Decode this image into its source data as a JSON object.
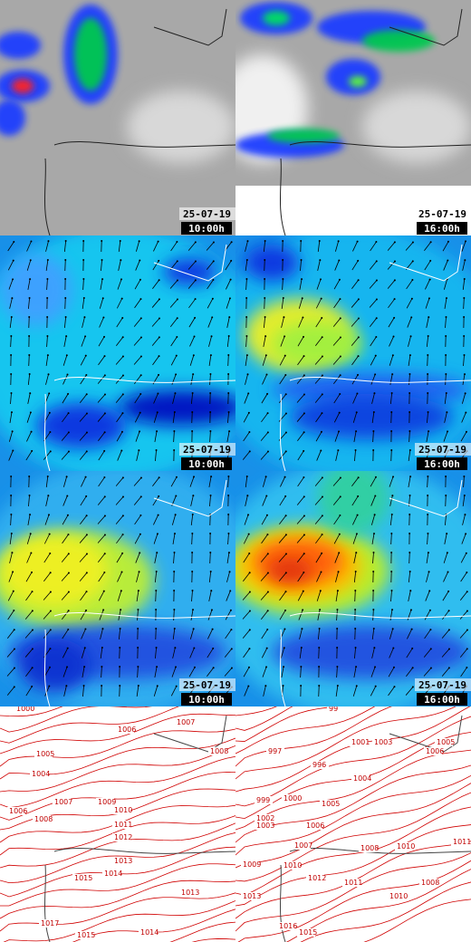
{
  "panels": [
    {
      "date": "25-07-19",
      "time": "10:00h"
    },
    {
      "date": "25-07-19",
      "time": "16:00h"
    },
    {
      "date": "25-07-19",
      "time": "10:00h"
    },
    {
      "date": "25-07-19",
      "time": "16:00h"
    },
    {
      "date": "25-07-19",
      "time": "10:00h"
    },
    {
      "date": "25-07-19",
      "time": "16:00h"
    },
    {
      "isobar_labels": [
        "1000",
        "1007",
        "1006",
        "1005",
        "1004",
        "1008",
        "1006",
        "1007",
        "1008",
        "1009",
        "1010",
        "1011",
        "1012",
        "1013",
        "1014",
        "1015",
        "1013",
        "1017",
        "1014",
        "1015"
      ]
    },
    {
      "isobar_labels": [
        "99",
        "997",
        "1001",
        "1003",
        "1005",
        "1006",
        "996",
        "999",
        "1000",
        "1004",
        "1005",
        "1002",
        "1003",
        "1006",
        "1007",
        "1008",
        "1010",
        "1011",
        "1009",
        "1010",
        "1012",
        "1011",
        "1010",
        "1008",
        "1013",
        "1016",
        "1015"
      ]
    }
  ]
}
